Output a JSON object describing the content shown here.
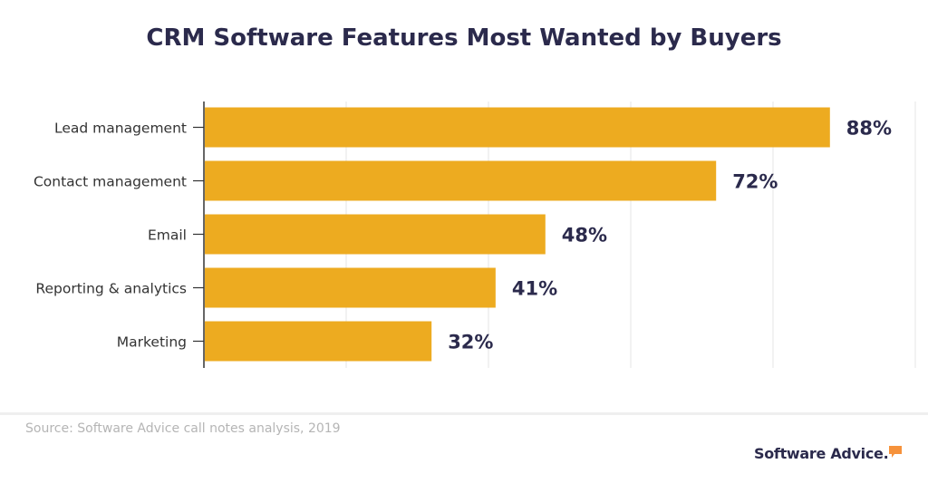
{
  "chart_data": {
    "type": "bar",
    "orientation": "horizontal",
    "title": "CRM Software Features Most Wanted by Buyers",
    "categories": [
      "Lead management",
      "Contact management",
      "Email",
      "Reporting & analytics",
      "Marketing"
    ],
    "values": [
      88,
      72,
      48,
      41,
      32
    ],
    "value_labels": [
      "88%",
      "72%",
      "48%",
      "41%",
      "32%"
    ],
    "xlim": [
      0,
      100
    ],
    "grid": true,
    "bar_color": "#edab20",
    "label_color": "#2b2a4c"
  },
  "footer": {
    "source": "Source: Software Advice call notes analysis, 2019",
    "brand": "Software Advice.",
    "brand_color": "#2b2a4c",
    "brand_accent_color": "#f6923b"
  }
}
